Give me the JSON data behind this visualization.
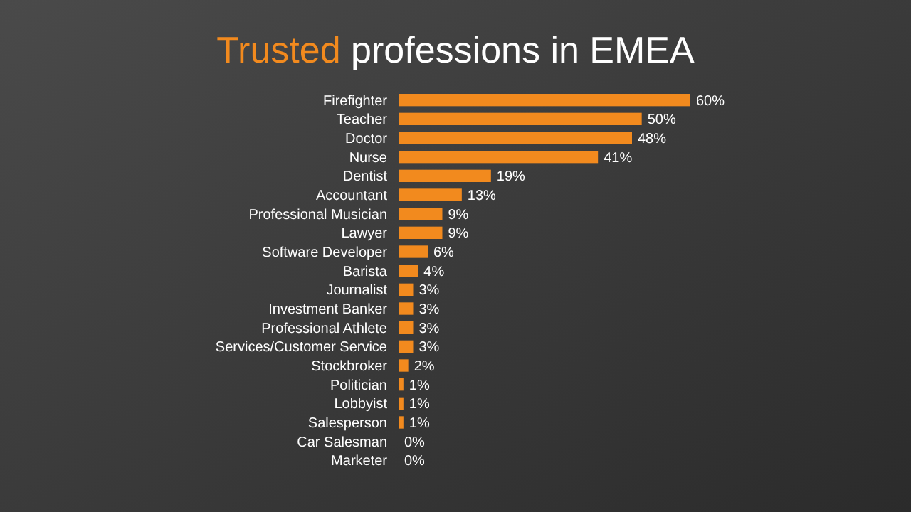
{
  "chart_data": {
    "type": "bar",
    "orientation": "horizontal",
    "title": "Trusted professions in EMEA",
    "categories": [
      "Firefighter",
      "Teacher",
      "Doctor",
      "Nurse",
      "Dentist",
      "Accountant",
      "Professional Musician",
      "Lawyer",
      "Software Developer",
      "Barista",
      "Journalist",
      "Investment Banker",
      "Professional Athlete",
      "Services/Customer Service",
      "Stockbroker",
      "Politician",
      "Lobbyist",
      "Salesperson",
      "Car Salesman",
      "Marketer"
    ],
    "values": [
      60,
      50,
      48,
      41,
      19,
      13,
      9,
      9,
      6,
      4,
      3,
      3,
      3,
      3,
      2,
      1,
      1,
      1,
      0,
      0
    ],
    "value_labels": [
      "60%",
      "50%",
      "48%",
      "41%",
      "19%",
      "13%",
      "9%",
      "9%",
      "6%",
      "4%",
      "3%",
      "3%",
      "3%",
      "3%",
      "2%",
      "1%",
      "1%",
      "1%",
      "0%",
      "0%"
    ],
    "color": "#f28a1e"
  }
}
